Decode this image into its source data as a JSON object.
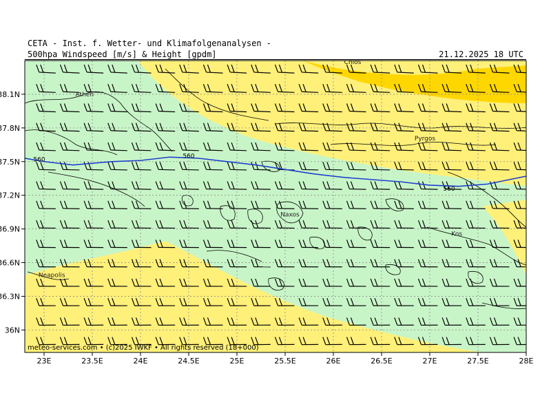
{
  "header": {
    "institute": "CETA - Inst. f. Wetter- und Klimafolgenanalysen -",
    "product": "500hpa Windspeed [m/s] & Height [gpdm]",
    "valid_time": "21.12.2025 18 UTC"
  },
  "footer": {
    "credit": "meteo-services.com • (c)2025 IWKF • All rights reserved (18+000)"
  },
  "colors": {
    "band_low": "#c8f5c8",
    "band_mid": "#fff07a",
    "band_high": "#ffd700",
    "height_contour": "#1f3fcf",
    "coastline": "#000000",
    "barb": "#000000"
  },
  "map": {
    "lon_range": [
      22.8,
      28.0
    ],
    "lat_range": [
      35.8,
      38.4
    ],
    "lon_ticks": [
      {
        "value": 23.0,
        "label": "23E"
      },
      {
        "value": 23.5,
        "label": "23.5E"
      },
      {
        "value": 24.0,
        "label": "24E"
      },
      {
        "value": 24.5,
        "label": "24.5E"
      },
      {
        "value": 25.0,
        "label": "25E"
      },
      {
        "value": 25.5,
        "label": "25.5E"
      },
      {
        "value": 26.0,
        "label": "26E"
      },
      {
        "value": 26.5,
        "label": "26.5E"
      },
      {
        "value": 27.0,
        "label": "27E"
      },
      {
        "value": 27.5,
        "label": "27.5E"
      },
      {
        "value": 28.0,
        "label": "28E"
      }
    ],
    "lat_ticks": [
      {
        "value": 38.1,
        "label": "38.1N"
      },
      {
        "value": 37.8,
        "label": "37.8N"
      },
      {
        "value": 37.5,
        "label": "37.5N"
      },
      {
        "value": 37.2,
        "label": "37.2N"
      },
      {
        "value": 36.9,
        "label": "36.9N"
      },
      {
        "value": 36.6,
        "label": "36.6N"
      },
      {
        "value": 36.3,
        "label": "36.3N"
      },
      {
        "value": 36.0,
        "label": "36N"
      }
    ],
    "places": [
      {
        "name": "Athen",
        "lon": 23.42,
        "lat": 38.08
      },
      {
        "name": "Chios",
        "lon": 26.2,
        "lat": 38.37
      },
      {
        "name": "Pyrgos",
        "lon": 26.95,
        "lat": 37.69
      },
      {
        "name": "Naxos",
        "lon": 25.55,
        "lat": 37.01
      },
      {
        "name": "Kos",
        "lon": 27.28,
        "lat": 36.84
      },
      {
        "name": "Neapolis",
        "lon": 23.08,
        "lat": 36.47
      }
    ],
    "contour_labels": [
      {
        "text": "560",
        "lon": 22.95,
        "lat": 37.52
      },
      {
        "text": "560",
        "lon": 24.5,
        "lat": 37.55
      },
      {
        "text": "560",
        "lon": 27.2,
        "lat": 37.26
      }
    ],
    "height_contour_560": [
      [
        22.8,
        37.53
      ],
      [
        23.0,
        37.5
      ],
      [
        23.3,
        37.47
      ],
      [
        23.7,
        37.5
      ],
      [
        24.0,
        37.51
      ],
      [
        24.3,
        37.54
      ],
      [
        24.6,
        37.53
      ],
      [
        24.9,
        37.5
      ],
      [
        25.2,
        37.47
      ],
      [
        25.5,
        37.43
      ],
      [
        25.8,
        37.39
      ],
      [
        26.1,
        37.36
      ],
      [
        26.4,
        37.34
      ],
      [
        26.7,
        37.32
      ],
      [
        27.0,
        37.29
      ],
      [
        27.3,
        37.28
      ],
      [
        27.6,
        37.3
      ],
      [
        28.0,
        37.37
      ]
    ]
  }
}
